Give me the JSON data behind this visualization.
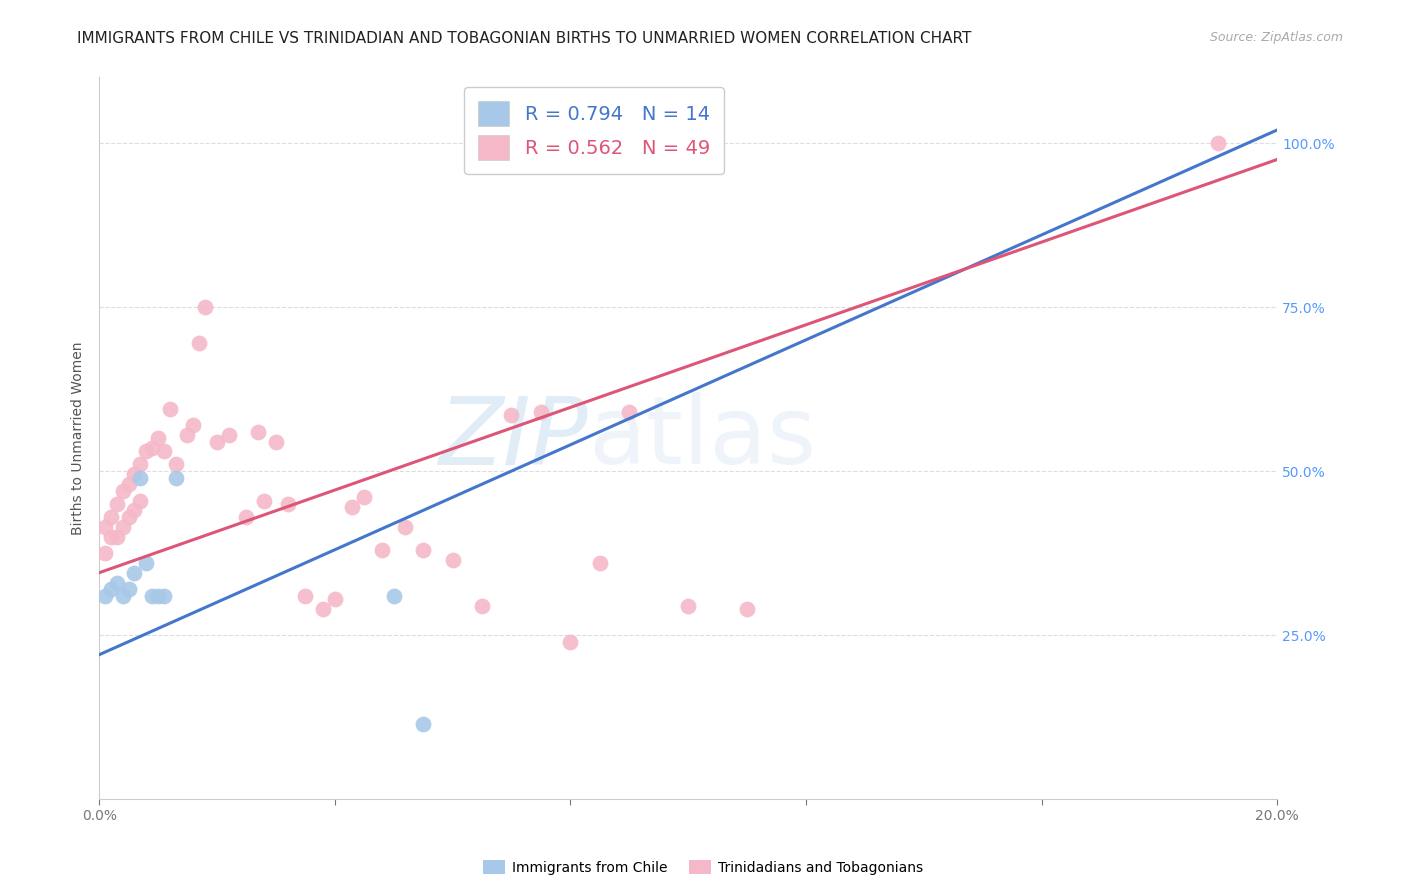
{
  "title": "IMMIGRANTS FROM CHILE VS TRINIDADIAN AND TOBAGONIAN BIRTHS TO UNMARRIED WOMEN CORRELATION CHART",
  "source": "Source: ZipAtlas.com",
  "ylabel": "Births to Unmarried Women",
  "xlim": [
    0.0,
    0.2
  ],
  "ylim": [
    0.0,
    1.1
  ],
  "x_tick_positions": [
    0.0,
    0.04,
    0.08,
    0.12,
    0.16,
    0.2
  ],
  "x_tick_labels": [
    "0.0%",
    "",
    "",
    "",
    "",
    "20.0%"
  ],
  "y_ticks_right": [
    0.25,
    0.5,
    0.75,
    1.0
  ],
  "y_tick_labels_right": [
    "25.0%",
    "50.0%",
    "75.0%",
    "100.0%"
  ],
  "r_blue": 0.794,
  "n_blue": 14,
  "r_pink": 0.562,
  "n_pink": 49,
  "blue_color": "#a8c8e8",
  "pink_color": "#f5b8c8",
  "blue_line_color": "#4477cc",
  "pink_line_color": "#dd5577",
  "watermark_zip": "ZIP",
  "watermark_atlas": "atlas",
  "blue_points_x": [
    0.001,
    0.002,
    0.003,
    0.004,
    0.005,
    0.006,
    0.007,
    0.008,
    0.009,
    0.01,
    0.011,
    0.013,
    0.05,
    0.055
  ],
  "blue_points_y": [
    0.31,
    0.32,
    0.33,
    0.31,
    0.32,
    0.345,
    0.49,
    0.36,
    0.31,
    0.31,
    0.31,
    0.49,
    0.31,
    0.115
  ],
  "pink_points_x": [
    0.001,
    0.001,
    0.002,
    0.002,
    0.003,
    0.003,
    0.004,
    0.004,
    0.005,
    0.005,
    0.006,
    0.006,
    0.007,
    0.007,
    0.008,
    0.009,
    0.01,
    0.011,
    0.012,
    0.013,
    0.015,
    0.016,
    0.017,
    0.018,
    0.02,
    0.022,
    0.025,
    0.027,
    0.028,
    0.03,
    0.032,
    0.035,
    0.038,
    0.04,
    0.043,
    0.045,
    0.048,
    0.052,
    0.055,
    0.06,
    0.065,
    0.07,
    0.075,
    0.08,
    0.085,
    0.09,
    0.1,
    0.11,
    0.19
  ],
  "pink_points_y": [
    0.375,
    0.415,
    0.4,
    0.43,
    0.4,
    0.45,
    0.415,
    0.47,
    0.43,
    0.48,
    0.44,
    0.495,
    0.455,
    0.51,
    0.53,
    0.535,
    0.55,
    0.53,
    0.595,
    0.51,
    0.555,
    0.57,
    0.695,
    0.75,
    0.545,
    0.555,
    0.43,
    0.56,
    0.455,
    0.545,
    0.45,
    0.31,
    0.29,
    0.305,
    0.445,
    0.46,
    0.38,
    0.415,
    0.38,
    0.365,
    0.295,
    0.585,
    0.59,
    0.24,
    0.36,
    0.59,
    0.295,
    0.29,
    1.0
  ],
  "blue_line_x": [
    0.0,
    0.2
  ],
  "blue_line_y": [
    0.22,
    1.02
  ],
  "pink_line_x": [
    0.0,
    0.2
  ],
  "pink_line_y": [
    0.345,
    0.975
  ],
  "background_color": "#ffffff",
  "grid_color": "#dddddd",
  "title_fontsize": 11,
  "axis_fontsize": 10,
  "tick_fontsize": 10,
  "legend_fontsize": 14
}
